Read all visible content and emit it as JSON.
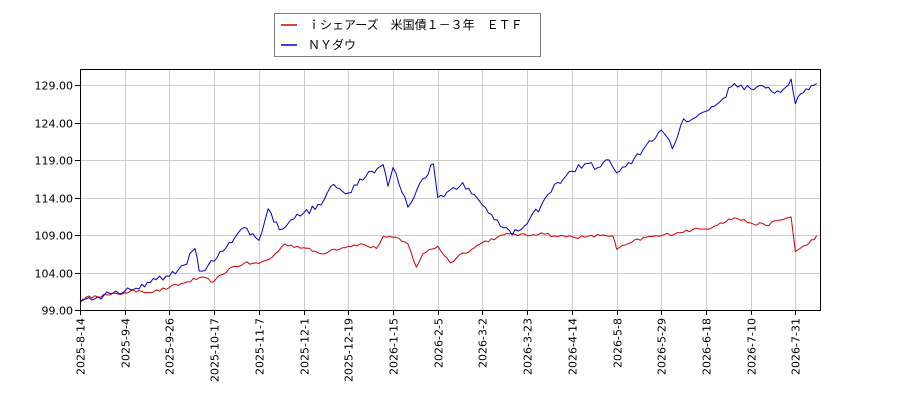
{
  "chart_data": {
    "type": "line",
    "title": "",
    "xlabel": "",
    "ylabel": "",
    "ylim": [
      99.0,
      131.0
    ],
    "y_ticks": [
      "99.00",
      "104.00",
      "109.00",
      "114.00",
      "119.00",
      "124.00",
      "129.00"
    ],
    "x_ticks": [
      "2025-8-14",
      "2025-9-4",
      "2025-9-26",
      "2025-10-17",
      "2025-11-7",
      "2025-12-1",
      "2025-12-19",
      "2026-1-15",
      "2026-2-5",
      "2026-3-2",
      "2026-3-23",
      "2026-4-14",
      "2026-5-8",
      "2026-5-29",
      "2026-6-18",
      "2026-7-10",
      "2026-7-31"
    ],
    "grid": true,
    "legend_position": "top-center",
    "series": [
      {
        "name": "ｉシェアーズ　米国債１－３年　ＥＴＦ",
        "color": "#cc0000",
        "points": [
          [
            "2025-8-14",
            100.3
          ],
          [
            "2025-8-21",
            100.9
          ],
          [
            "2025-8-28",
            101.0
          ],
          [
            "2025-9-4",
            101.3
          ],
          [
            "2025-9-11",
            101.6
          ],
          [
            "2025-9-18",
            101.4
          ],
          [
            "2025-9-26",
            102.0
          ],
          [
            "2025-10-3",
            102.6
          ],
          [
            "2025-10-10",
            103.3
          ],
          [
            "2025-10-17",
            102.8
          ],
          [
            "2025-10-24",
            104.5
          ],
          [
            "2025-10-31",
            105.2
          ],
          [
            "2025-11-7",
            105.2
          ],
          [
            "2025-11-14",
            106.0
          ],
          [
            "2025-11-21",
            107.8
          ],
          [
            "2025-12-1",
            107.3
          ],
          [
            "2025-12-8",
            106.5
          ],
          [
            "2025-12-12",
            107.0
          ],
          [
            "2025-12-19",
            107.5
          ],
          [
            "2025-12-26",
            107.8
          ],
          [
            "2026-1-5",
            107.2
          ],
          [
            "2026-1-9",
            108.8
          ],
          [
            "2026-1-15",
            108.7
          ],
          [
            "2026-1-22",
            107.8
          ],
          [
            "2026-1-26",
            104.7
          ],
          [
            "2026-1-29",
            106.5
          ],
          [
            "2026-2-5",
            107.5
          ],
          [
            "2026-2-12",
            105.3
          ],
          [
            "2026-2-19",
            106.6
          ],
          [
            "2026-2-24",
            107.1
          ],
          [
            "2026-3-2",
            108.0
          ],
          [
            "2026-3-9",
            108.7
          ],
          [
            "2026-3-16",
            109.2
          ],
          [
            "2026-3-23",
            108.9
          ],
          [
            "2026-3-30",
            109.3
          ],
          [
            "2026-4-7",
            108.8
          ],
          [
            "2026-4-14",
            108.8
          ],
          [
            "2026-4-21",
            108.7
          ],
          [
            "2026-5-1",
            109.0
          ],
          [
            "2026-5-6",
            108.9
          ],
          [
            "2026-5-8",
            107.1
          ],
          [
            "2026-5-15",
            108.0
          ],
          [
            "2026-5-22",
            108.7
          ],
          [
            "2026-5-29",
            108.9
          ],
          [
            "2026-6-5",
            109.3
          ],
          [
            "2026-6-12",
            109.7
          ],
          [
            "2026-6-18",
            109.8
          ],
          [
            "2026-6-25",
            110.6
          ],
          [
            "2026-7-2",
            111.3
          ],
          [
            "2026-7-10",
            110.6
          ],
          [
            "2026-7-17",
            110.3
          ],
          [
            "2026-7-24",
            111.0
          ],
          [
            "2026-7-29",
            111.4
          ],
          [
            "2026-7-31",
            106.8
          ],
          [
            "2026-8-5",
            107.6
          ],
          [
            "2026-8-10",
            108.9
          ]
        ]
      },
      {
        "name": "ＮＹダウ",
        "color": "#0000cc",
        "points": [
          [
            "2025-8-14",
            100.0
          ],
          [
            "2025-8-21",
            100.5
          ],
          [
            "2025-8-28",
            101.2
          ],
          [
            "2025-9-4",
            101.5
          ],
          [
            "2025-9-11",
            101.8
          ],
          [
            "2025-9-18",
            103.2
          ],
          [
            "2025-9-26",
            103.5
          ],
          [
            "2025-10-3",
            105.0
          ],
          [
            "2025-10-8",
            107.2
          ],
          [
            "2025-10-10",
            104.2
          ],
          [
            "2025-10-17",
            105.5
          ],
          [
            "2025-10-24",
            108.0
          ],
          [
            "2025-10-31",
            110.0
          ],
          [
            "2025-11-7",
            108.3
          ],
          [
            "2025-11-12",
            112.5
          ],
          [
            "2025-11-18",
            109.7
          ],
          [
            "2025-11-24",
            111.0
          ],
          [
            "2025-12-1",
            111.9
          ],
          [
            "2025-12-8",
            113.0
          ],
          [
            "2025-12-12",
            115.5
          ],
          [
            "2025-12-19",
            114.6
          ],
          [
            "2025-12-26",
            116.5
          ],
          [
            "2026-1-2",
            117.5
          ],
          [
            "2026-1-9",
            118.4
          ],
          [
            "2026-1-12",
            115.5
          ],
          [
            "2026-1-15",
            118.0
          ],
          [
            "2026-1-22",
            112.7
          ],
          [
            "2026-1-29",
            116.5
          ],
          [
            "2026-2-3",
            118.5
          ],
          [
            "2026-2-5",
            114.0
          ],
          [
            "2026-2-12",
            115.0
          ],
          [
            "2026-2-19",
            116.0
          ],
          [
            "2026-2-24",
            114.5
          ],
          [
            "2026-3-2",
            113.0
          ],
          [
            "2026-3-9",
            111.0
          ],
          [
            "2026-3-16",
            109.0
          ],
          [
            "2026-3-23",
            110.5
          ],
          [
            "2026-3-30",
            113.0
          ],
          [
            "2026-4-7",
            116.0
          ],
          [
            "2026-4-14",
            117.5
          ],
          [
            "2026-4-21",
            118.5
          ],
          [
            "2026-4-28",
            118.0
          ],
          [
            "2026-5-4",
            119.0
          ],
          [
            "2026-5-8",
            117.3
          ],
          [
            "2026-5-15",
            118.5
          ],
          [
            "2026-5-22",
            121.0
          ],
          [
            "2026-5-29",
            123.0
          ],
          [
            "2026-6-3",
            120.5
          ],
          [
            "2026-6-8",
            124.5
          ],
          [
            "2026-6-12",
            124.5
          ],
          [
            "2026-6-18",
            125.5
          ],
          [
            "2026-6-25",
            126.8
          ],
          [
            "2026-7-2",
            129.2
          ],
          [
            "2026-7-10",
            128.5
          ],
          [
            "2026-7-17",
            128.6
          ],
          [
            "2026-7-24",
            128.0
          ],
          [
            "2026-7-29",
            129.8
          ],
          [
            "2026-7-31",
            126.5
          ],
          [
            "2026-8-5",
            128.5
          ],
          [
            "2026-8-10",
            129.2
          ]
        ]
      }
    ]
  }
}
